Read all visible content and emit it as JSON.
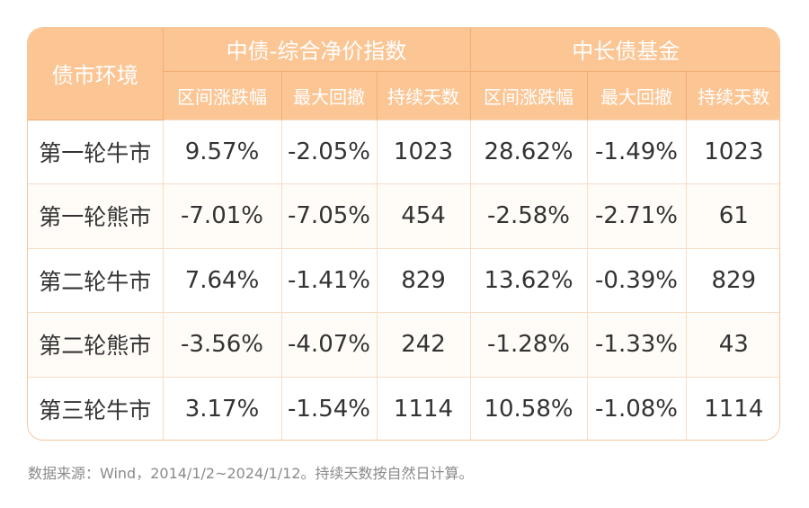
{
  "table": {
    "corner_header": "债市环境",
    "groups": [
      "中债-综合净价指数",
      "中长债基金"
    ],
    "sub_headers": [
      "区间涨跌幅",
      "最大回撤",
      "持续天数",
      "区间涨跌幅",
      "最大回撤",
      "持续天数"
    ],
    "rows": [
      {
        "label": "第一轮牛市",
        "values": [
          "9.57%",
          "-2.05%",
          "1023",
          "28.62%",
          "-1.49%",
          "1023"
        ]
      },
      {
        "label": "第一轮熊市",
        "values": [
          "-7.01%",
          "-7.05%",
          "454",
          "-2.58%",
          "-2.71%",
          "61"
        ]
      },
      {
        "label": "第二轮牛市",
        "values": [
          "7.64%",
          "-1.41%",
          "829",
          "13.62%",
          "-0.39%",
          "829"
        ]
      },
      {
        "label": "第二轮熊市",
        "values": [
          "-3.56%",
          "-4.07%",
          "242",
          "-1.28%",
          "-1.33%",
          "43"
        ]
      },
      {
        "label": "第三轮牛市",
        "values": [
          "3.17%",
          "-1.54%",
          "1114",
          "10.58%",
          "-1.08%",
          "1114"
        ]
      }
    ]
  },
  "source_note": "数据来源：Wind，2014/1/2~2024/1/12。持续天数按自然日计算。",
  "colors": {
    "header_bg": "#fcc594",
    "border": "#f7c79b",
    "text": "#333333"
  }
}
